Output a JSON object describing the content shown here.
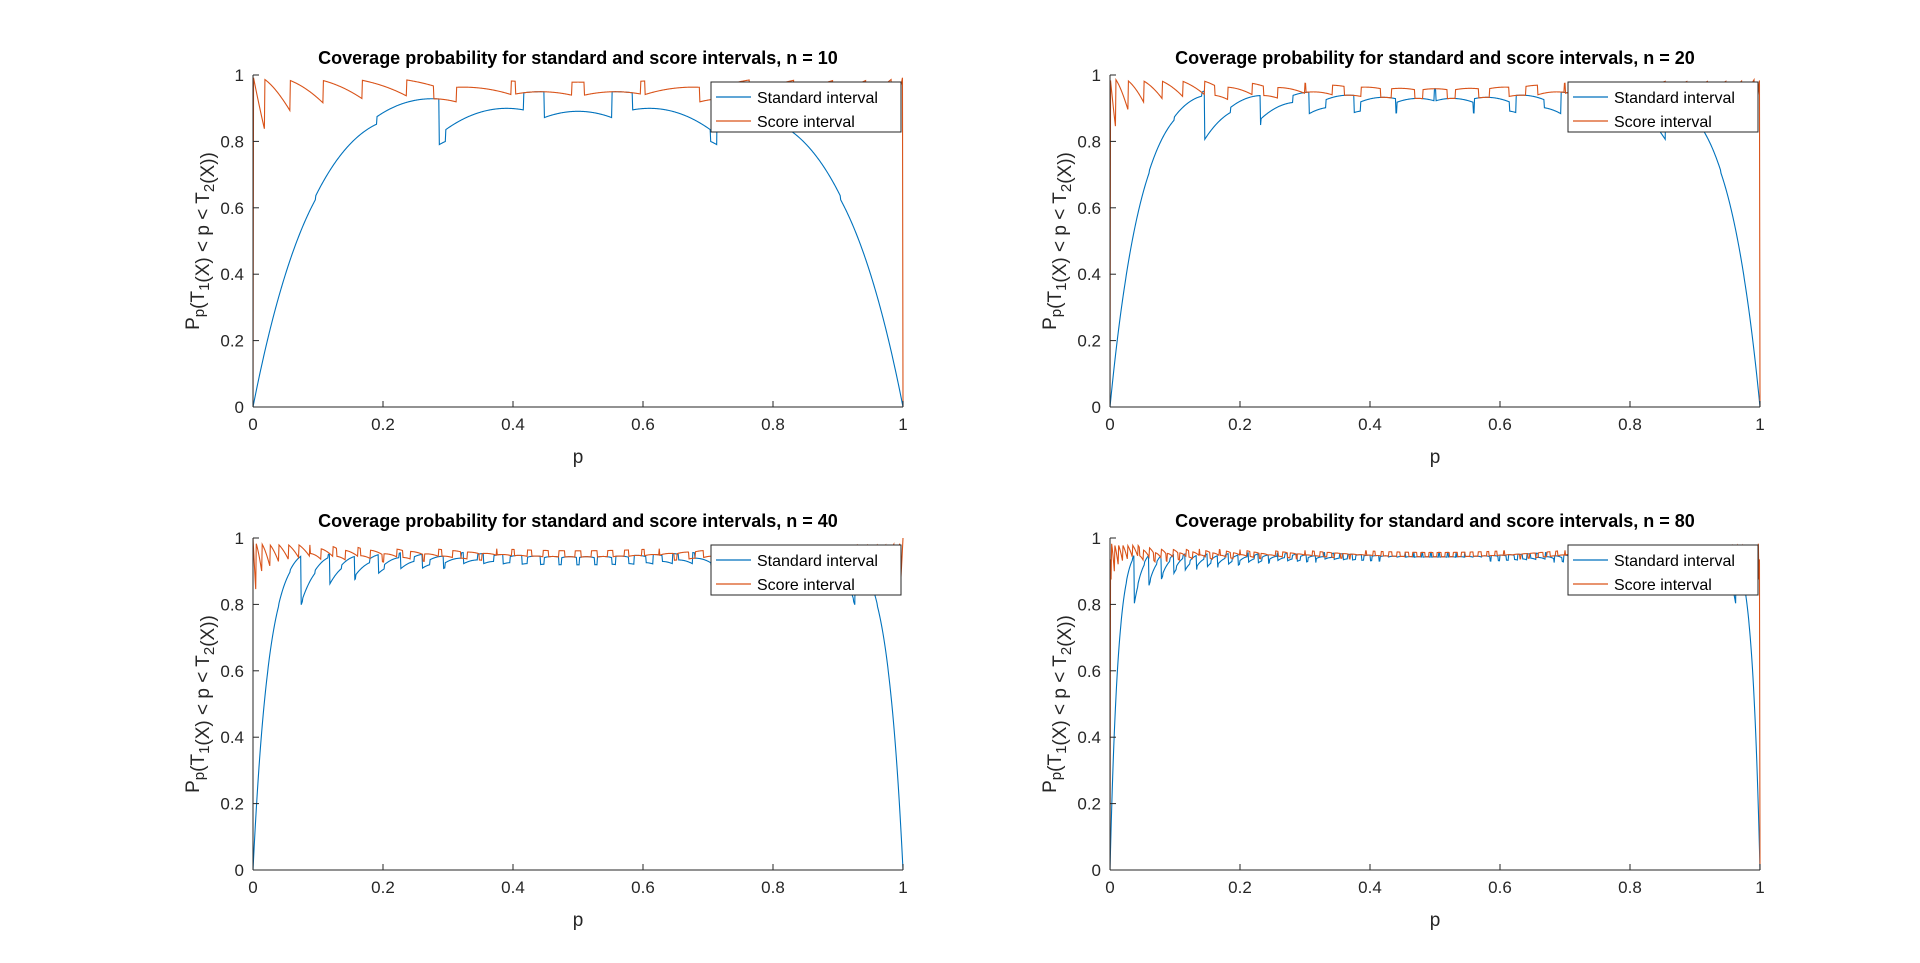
{
  "chart_data": [
    {
      "type": "line",
      "title": "Coverage probability for standard and score intervals, n = 10",
      "n": 10,
      "xlabel": "p",
      "ylabel": "P_p(T_1(X) < p < T_2(X))",
      "xlim": [
        0,
        1
      ],
      "ylim": [
        0,
        1
      ],
      "xticks": [
        "0",
        "0.2",
        "0.4",
        "0.6",
        "0.8",
        "1"
      ],
      "yticks": [
        "0",
        "0.2",
        "0.4",
        "0.6",
        "0.8",
        "1"
      ],
      "grid": false,
      "legend_position": "top-right",
      "series": [
        {
          "name": "Standard interval",
          "color": "#0072BD"
        },
        {
          "name": "Score interval",
          "color": "#D95319"
        }
      ]
    },
    {
      "type": "line",
      "title": "Coverage probability for standard and score intervals, n = 20",
      "n": 20,
      "xlabel": "p",
      "ylabel": "P_p(T_1(X) < p < T_2(X))",
      "xlim": [
        0,
        1
      ],
      "ylim": [
        0,
        1
      ],
      "xticks": [
        "0",
        "0.2",
        "0.4",
        "0.6",
        "0.8",
        "1"
      ],
      "yticks": [
        "0",
        "0.2",
        "0.4",
        "0.6",
        "0.8",
        "1"
      ],
      "grid": false,
      "legend_position": "top-right",
      "series": [
        {
          "name": "Standard interval",
          "color": "#0072BD"
        },
        {
          "name": "Score interval",
          "color": "#D95319"
        }
      ]
    },
    {
      "type": "line",
      "title": "Coverage probability for standard and score intervals, n = 40",
      "n": 40,
      "xlabel": "p",
      "ylabel": "P_p(T_1(X) < p < T_2(X))",
      "xlim": [
        0,
        1
      ],
      "ylim": [
        0,
        1
      ],
      "xticks": [
        "0",
        "0.2",
        "0.4",
        "0.6",
        "0.8",
        "1"
      ],
      "yticks": [
        "0",
        "0.2",
        "0.4",
        "0.6",
        "0.8",
        "1"
      ],
      "grid": false,
      "legend_position": "top-right",
      "series": [
        {
          "name": "Standard interval",
          "color": "#0072BD"
        },
        {
          "name": "Score interval",
          "color": "#D95319"
        }
      ]
    },
    {
      "type": "line",
      "title": "Coverage probability for standard and score intervals, n = 80",
      "n": 80,
      "xlabel": "p",
      "ylabel": "P_p(T_1(X) < p < T_2(X))",
      "xlim": [
        0,
        1
      ],
      "ylim": [
        0,
        1
      ],
      "xticks": [
        "0",
        "0.2",
        "0.4",
        "0.6",
        "0.8",
        "1"
      ],
      "yticks": [
        "0",
        "0.2",
        "0.4",
        "0.6",
        "0.8",
        "1"
      ],
      "grid": false,
      "legend_position": "top-right",
      "series": [
        {
          "name": "Standard interval",
          "color": "#0072BD"
        },
        {
          "name": "Score interval",
          "color": "#D95319"
        }
      ]
    }
  ]
}
